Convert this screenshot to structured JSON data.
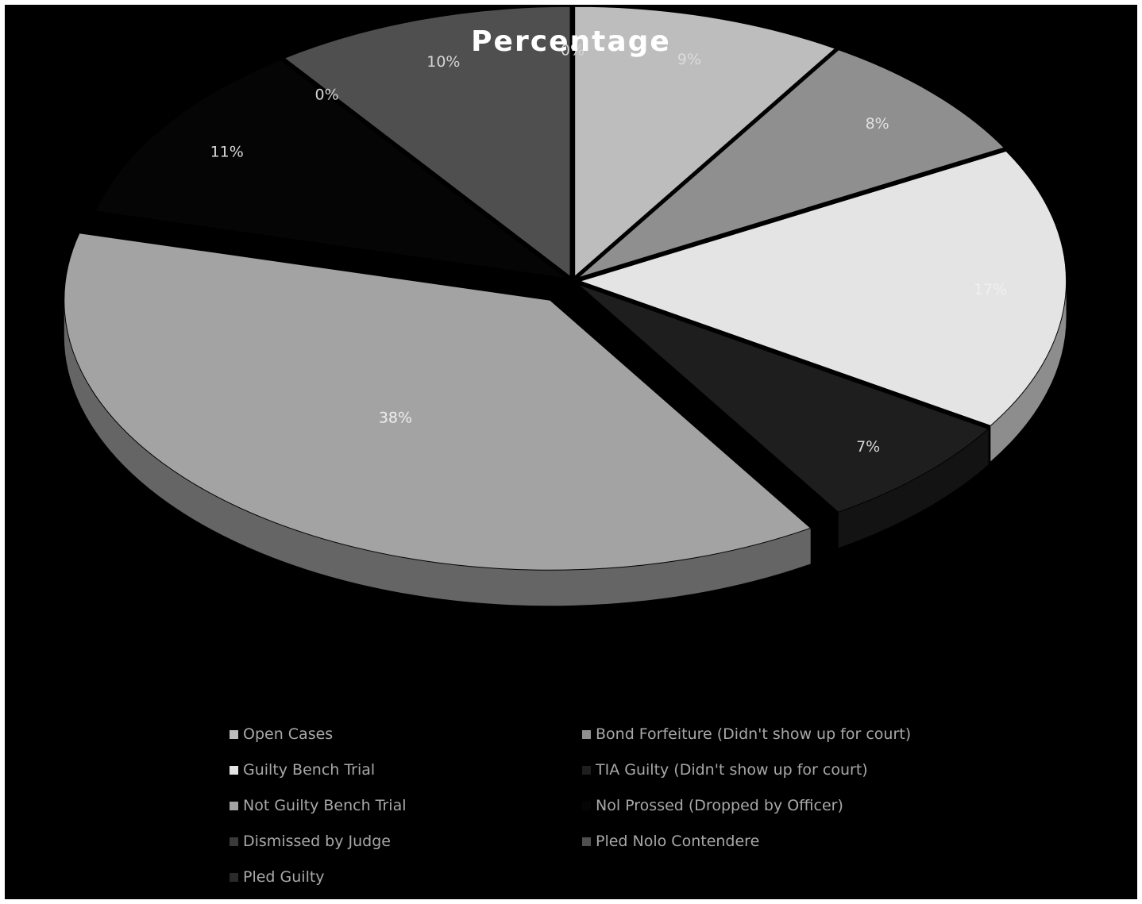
{
  "chart_data": {
    "type": "pie",
    "title": "Percentage",
    "labels": [
      "Open Cases",
      "Bond Forfeiture (Didn't show up for court)",
      "Guilty Bench Trial",
      "TIA Guilty (Didn't show up for court)",
      "Not Guilty Bench Trial",
      "Nol Prossed (Dropped by Officer)",
      "Dismissed by Judge",
      "Pled Nolo Contendere",
      "Pled Guilty"
    ],
    "values": [
      9,
      8,
      17,
      7,
      38,
      11,
      0,
      10,
      0
    ],
    "data_labels": [
      "9%",
      "8%",
      "17%",
      "7%",
      "38%",
      "11%",
      "0%",
      "10%",
      "0%"
    ],
    "colors": [
      "#bdbdbd",
      "#8f8f8f",
      "#e4e4e4",
      "#1e1e1e",
      "#a3a3a3",
      "#050505",
      "#3a3a3a",
      "#4f4f4f",
      "#2a2a2a"
    ],
    "label_colors": [
      "#dcdcdc",
      "#e0e0e0",
      "#f0f0f0",
      "#d8d8d8",
      "#efefef",
      "#d9d9d9",
      "#d4d4d4",
      "#d4d4d4",
      "#d4d4d4"
    ],
    "legend_position": "bottom",
    "style": "3d-exploded"
  }
}
